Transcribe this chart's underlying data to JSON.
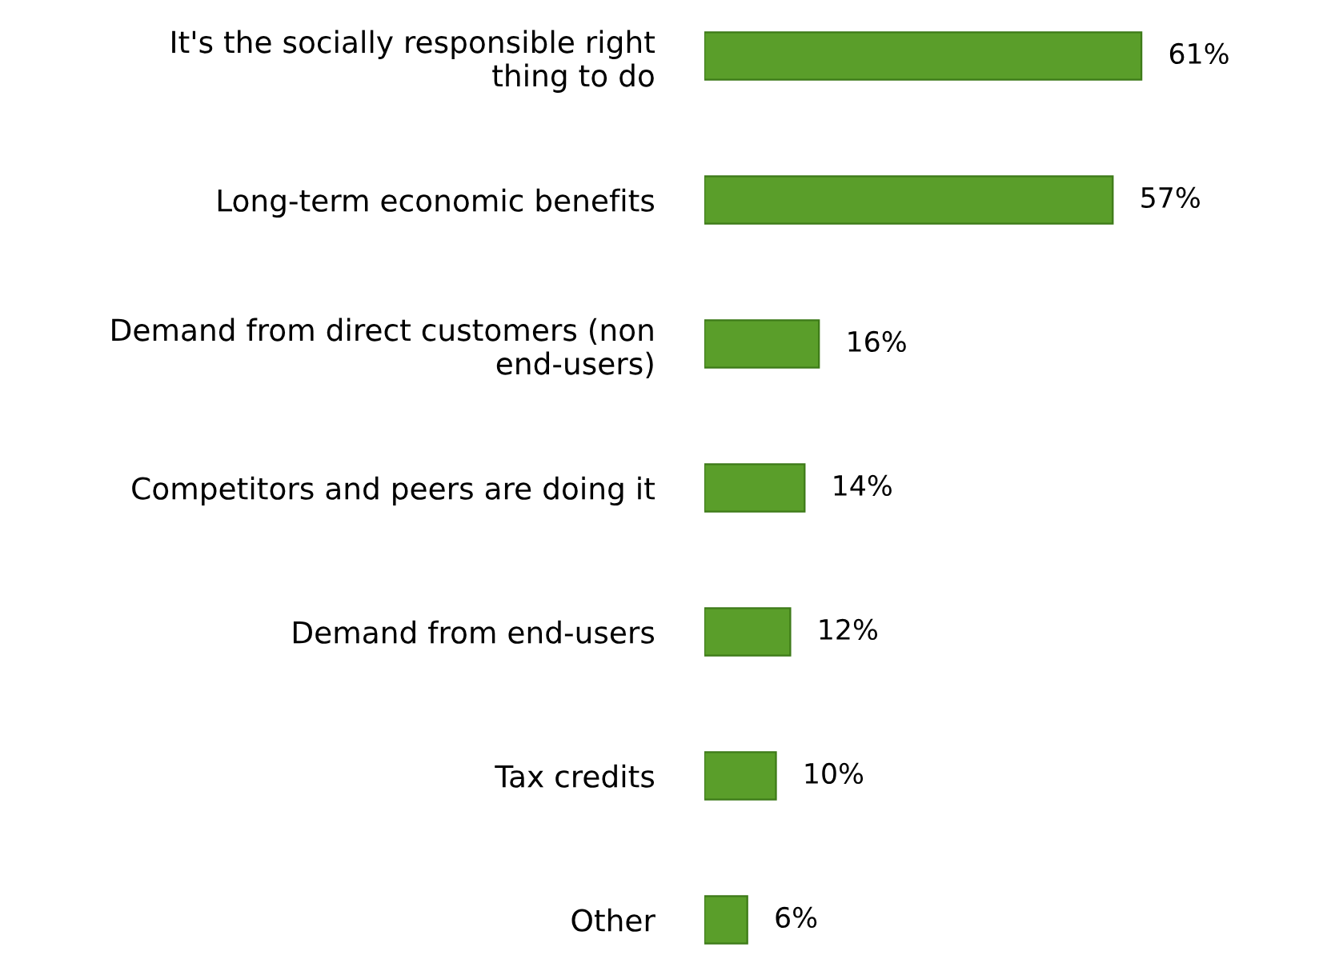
{
  "chart_data": {
    "type": "bar",
    "orientation": "horizontal",
    "categories": [
      "It's the socially responsible right\nthing to do",
      "Long-term economic benefits",
      "Demand from direct customers (non\nend-users)",
      "Competitors and peers are doing it",
      "Demand from end-users",
      "Tax credits",
      "Other"
    ],
    "values": [
      61,
      57,
      16,
      14,
      12,
      10,
      6
    ],
    "value_labels": [
      "61%",
      "57%",
      "16%",
      "14%",
      "12%",
      "10%",
      "6%"
    ],
    "color": "#5a9e2a",
    "grid": false,
    "legend": false
  }
}
